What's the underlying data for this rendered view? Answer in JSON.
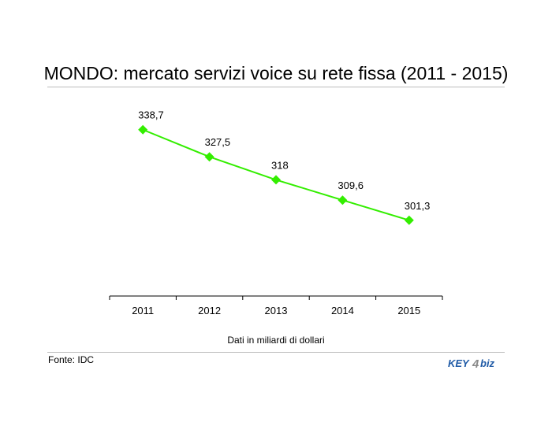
{
  "chart_data": {
    "type": "line",
    "title": "MONDO: mercato servizi voice su rete fissa (2011 - 2015)",
    "categories": [
      "2011",
      "2012",
      "2013",
      "2014",
      "2015"
    ],
    "series": [
      {
        "values": [
          338.7,
          327.5,
          318,
          309.6,
          301.3
        ],
        "labels": [
          "338,7",
          "327,5",
          "318",
          "309,6",
          "301,3"
        ]
      }
    ],
    "xlabel": "Dati in miliardi di dollari",
    "ylabel": "",
    "ylim": [
      270,
      350
    ],
    "grid": false,
    "marker": "diamond",
    "line_color": "#33ee00"
  },
  "footer": {
    "source": "Fonte: IDC",
    "logo_text": "KEY4biz"
  },
  "colors": {
    "series": "#33ee00",
    "rule": "#bdbdbd",
    "logo_blue": "#1f5aa6"
  }
}
